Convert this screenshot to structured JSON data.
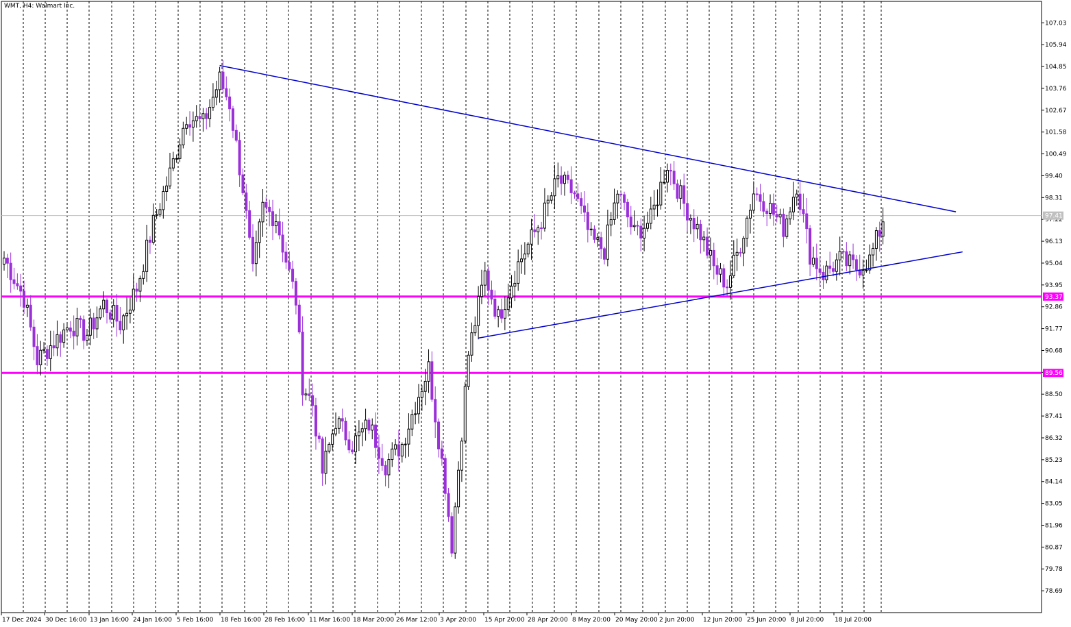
{
  "window": {
    "symbol": "WMT",
    "timeframe": "H4",
    "name": "Walmart Inc.",
    "title_text": "WMT, H4:  Walmart Inc."
  },
  "colors": {
    "bull": "#000000",
    "bear": "#9b30d9",
    "trendline": "#0000cc",
    "hline": "#ff00ff",
    "hline_label_bg": "#ff00ff",
    "bid_line": "#c0c0c0",
    "grid": "#000000"
  },
  "chart_data": {
    "type": "candlestick",
    "y_range": [
      77.6,
      108.1
    ],
    "price_ticks": [
      "107.03",
      "105.94",
      "104.85",
      "103.76",
      "102.67",
      "101.58",
      "100.49",
      "99.40",
      "98.31",
      "97.22",
      "96.13",
      "95.04",
      "93.95",
      "92.86",
      "91.77",
      "90.68",
      "89.59",
      "88.50",
      "87.41",
      "86.32",
      "85.23",
      "84.14",
      "83.05",
      "81.96",
      "80.87",
      "79.78",
      "78.69"
    ],
    "time_labels": [
      "17 Dec 2024",
      "30 Dec 16:00",
      "13 Jan 16:00",
      "24 Jan 16:00",
      "5 Feb 16:00",
      "18 Feb 16:00",
      "28 Feb 16:00",
      "11 Mar 16:00",
      "18 Mar 20:00",
      "26 Mar 12:00",
      "3 Apr 20:00",
      "15 Apr 20:00",
      "28 Apr 20:00",
      "8 May 20:00",
      "20 May 20:00",
      "2 Jun 20:00",
      "12 Jun 20:00",
      "25 Jun 20:00",
      "8 Jul 20:00",
      "18 Jul 20:00"
    ],
    "current_price": "97.41",
    "horizontal_levels": [
      {
        "price": 93.37,
        "label": "93.37"
      },
      {
        "price": 89.56,
        "label": "89.56"
      }
    ],
    "anchors": [
      [
        0,
        95.3
      ],
      [
        6,
        93.3
      ],
      [
        10,
        90.2
      ],
      [
        20,
        92.0
      ],
      [
        25,
        91.5
      ],
      [
        30,
        93.0
      ],
      [
        35,
        92.0
      ],
      [
        40,
        93.8
      ],
      [
        45,
        97.0
      ],
      [
        50,
        99.5
      ],
      [
        55,
        102.4
      ],
      [
        60,
        102.0
      ],
      [
        65,
        104.2
      ],
      [
        68,
        103.0
      ],
      [
        72,
        98.8
      ],
      [
        75,
        94.5
      ],
      [
        78,
        97.8
      ],
      [
        82,
        97.3
      ],
      [
        85,
        95.2
      ],
      [
        88,
        93.2
      ],
      [
        90,
        89.0
      ],
      [
        93,
        88.0
      ],
      [
        96,
        84.6
      ],
      [
        100,
        87.2
      ],
      [
        105,
        86.0
      ],
      [
        110,
        87.0
      ],
      [
        115,
        85.0
      ],
      [
        120,
        86.0
      ],
      [
        125,
        88.5
      ],
      [
        128,
        89.8
      ],
      [
        133,
        84.0
      ],
      [
        135,
        81.0
      ],
      [
        140,
        90.5
      ],
      [
        145,
        94.5
      ],
      [
        149,
        92.3
      ],
      [
        155,
        95.0
      ],
      [
        162,
        97.2
      ],
      [
        167,
        99.2
      ],
      [
        172,
        98.5
      ],
      [
        177,
        96.2
      ],
      [
        181,
        95.7
      ],
      [
        185,
        98.6
      ],
      [
        190,
        96.5
      ],
      [
        195,
        97.2
      ],
      [
        200,
        100.0
      ],
      [
        205,
        98.0
      ],
      [
        210,
        96.5
      ],
      [
        214,
        94.8
      ],
      [
        218,
        94.0
      ],
      [
        222,
        96.0
      ],
      [
        226,
        98.6
      ],
      [
        230,
        98.0
      ],
      [
        235,
        96.8
      ],
      [
        239,
        99.0
      ],
      [
        243,
        95.5
      ],
      [
        247,
        94.5
      ],
      [
        252,
        95.2
      ],
      [
        257,
        94.8
      ],
      [
        261,
        95.2
      ],
      [
        265,
        97.1
      ]
    ],
    "trendlines": [
      {
        "x1": 65,
        "y1": 104.9,
        "x2": 287,
        "y2": 97.6
      },
      {
        "x1": 143,
        "y1": 91.3,
        "x2": 289,
        "y2": 95.6
      }
    ],
    "bar_spacing": 4.84,
    "bar_start_x": 6,
    "grid_lines_x": [
      34,
      66,
      98,
      130,
      163,
      195,
      227,
      260,
      292,
      324,
      357,
      389,
      421,
      454,
      486,
      518,
      551,
      583,
      615,
      647,
      680,
      712,
      744,
      777,
      809,
      841,
      874,
      906,
      938,
      971,
      1003,
      1035,
      1068,
      1100,
      1132,
      1165,
      1197,
      1229,
      1261,
      1286
    ]
  }
}
